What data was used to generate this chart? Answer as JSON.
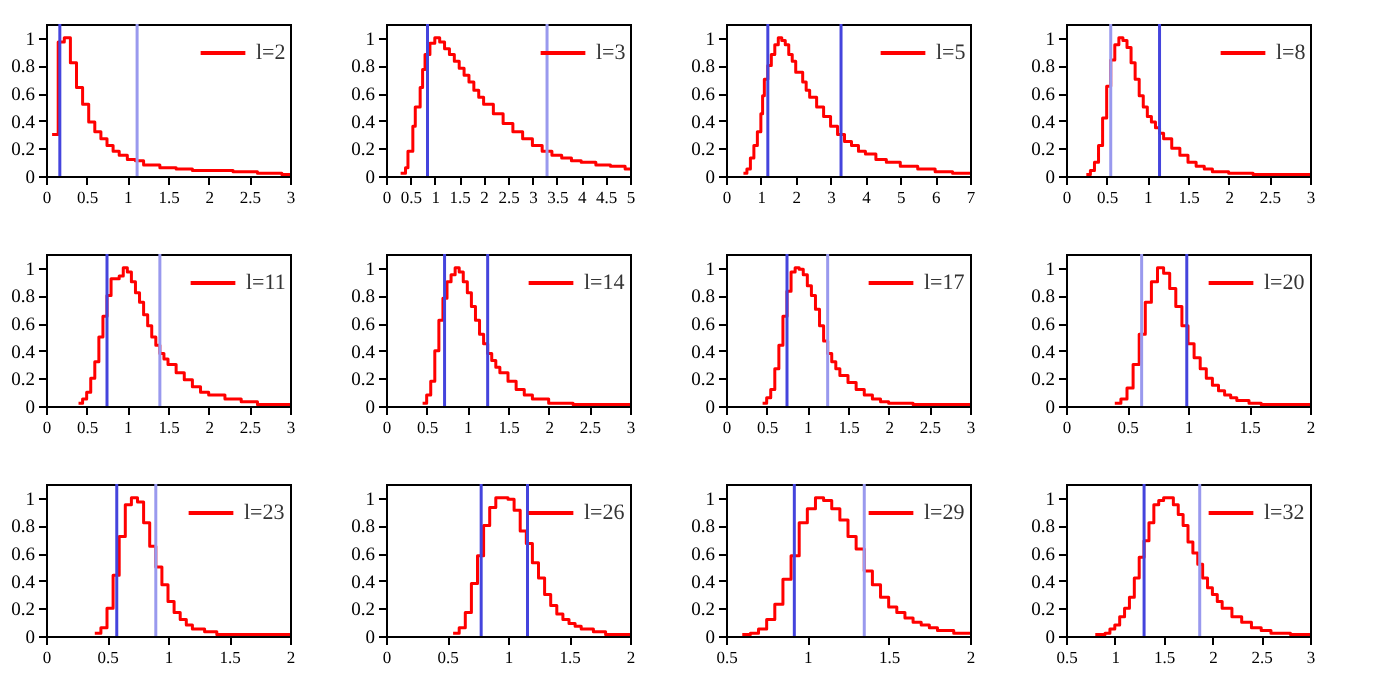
{
  "chart_data": [
    {
      "type": "step",
      "xlim": [
        0,
        3
      ],
      "xticks": [
        0,
        0.5,
        1,
        1.5,
        2,
        2.5,
        3
      ],
      "ylim": [
        0,
        1.1
      ],
      "yticks": [
        0,
        0.2,
        0.4,
        0.6,
        0.8,
        1
      ],
      "grid": false,
      "legend": "top right",
      "ref_lines": [
        {
          "axis": "x",
          "value": 0.17,
          "color": "#4444dd"
        },
        {
          "axis": "x",
          "value": 1.12,
          "color": "#9999ee"
        }
      ],
      "series": [
        {
          "name": "l=2",
          "color": "#ff0000",
          "x": [
            0.075,
            0.15,
            0.225,
            0.3,
            0.375,
            0.45,
            0.525,
            0.6,
            0.675,
            0.75,
            0.825,
            0.9,
            1.0,
            1.1,
            1.2,
            1.4,
            1.6,
            1.8,
            2.0,
            2.3,
            2.6,
            2.9,
            3.0
          ],
          "values": [
            0.3,
            0.97,
            1.0,
            0.82,
            0.64,
            0.52,
            0.39,
            0.32,
            0.27,
            0.22,
            0.18,
            0.15,
            0.12,
            0.11,
            0.08,
            0.06,
            0.05,
            0.04,
            0.04,
            0.03,
            0.02,
            0.01,
            0.01
          ]
        }
      ]
    },
    {
      "type": "step",
      "xlim": [
        0,
        5
      ],
      "xticks": [
        0,
        0.5,
        1,
        1.5,
        2,
        2.5,
        3,
        3.5,
        4,
        4.5,
        5
      ],
      "ylim": [
        0,
        1.1
      ],
      "yticks": [
        0,
        0.2,
        0.4,
        0.6,
        0.8,
        1
      ],
      "grid": false,
      "legend": "top right",
      "ref_lines": [
        {
          "axis": "x",
          "value": 0.85,
          "color": "#4444dd"
        },
        {
          "axis": "x",
          "value": 3.3,
          "color": "#9999ee"
        }
      ],
      "series": [
        {
          "name": "l=3",
          "color": "#ff0000",
          "x": [
            0.3,
            0.4,
            0.45,
            0.55,
            0.6,
            0.7,
            0.75,
            0.8,
            0.9,
            1.0,
            1.1,
            1.2,
            1.3,
            1.4,
            1.5,
            1.6,
            1.7,
            1.8,
            1.9,
            2.0,
            2.2,
            2.4,
            2.6,
            2.8,
            3.0,
            3.2,
            3.4,
            3.6,
            3.8,
            4.0,
            4.3,
            4.6,
            4.9,
            5.0
          ],
          "values": [
            0.02,
            0.06,
            0.18,
            0.36,
            0.5,
            0.64,
            0.77,
            0.88,
            0.96,
            1.0,
            0.97,
            0.92,
            0.88,
            0.83,
            0.78,
            0.73,
            0.68,
            0.62,
            0.57,
            0.52,
            0.45,
            0.38,
            0.32,
            0.27,
            0.22,
            0.18,
            0.15,
            0.13,
            0.11,
            0.1,
            0.08,
            0.07,
            0.05,
            0.05
          ]
        }
      ]
    },
    {
      "type": "step",
      "xlim": [
        0,
        7
      ],
      "xticks": [
        0,
        1,
        2,
        3,
        4,
        5,
        6,
        7
      ],
      "ylim": [
        0,
        1.1
      ],
      "yticks": [
        0,
        0.2,
        0.4,
        0.6,
        0.8,
        1
      ],
      "grid": false,
      "legend": "top right",
      "ref_lines": [
        {
          "axis": "x",
          "value": 1.2,
          "color": "#4444dd"
        },
        {
          "axis": "x",
          "value": 3.3,
          "color": "#4444dd"
        }
      ],
      "series": [
        {
          "name": "l=5",
          "color": "#ff0000",
          "x": [
            0.5,
            0.6,
            0.7,
            0.8,
            0.9,
            1.0,
            1.05,
            1.1,
            1.2,
            1.3,
            1.4,
            1.5,
            1.6,
            1.7,
            1.8,
            1.9,
            2.0,
            2.2,
            2.3,
            2.4,
            2.6,
            2.8,
            3.0,
            3.2,
            3.4,
            3.6,
            3.8,
            4.0,
            4.3,
            4.6,
            5.0,
            5.5,
            6.0,
            6.5,
            7.0
          ],
          "values": [
            0.02,
            0.05,
            0.13,
            0.22,
            0.32,
            0.45,
            0.58,
            0.7,
            0.8,
            0.88,
            0.95,
            1.0,
            0.98,
            0.95,
            0.88,
            0.83,
            0.75,
            0.68,
            0.62,
            0.57,
            0.5,
            0.43,
            0.36,
            0.3,
            0.25,
            0.22,
            0.18,
            0.16,
            0.12,
            0.1,
            0.07,
            0.05,
            0.03,
            0.02,
            0.02
          ]
        }
      ]
    },
    {
      "type": "step",
      "xlim": [
        0,
        3
      ],
      "xticks": [
        0,
        0.5,
        1,
        1.5,
        2,
        2.5,
        3
      ],
      "ylim": [
        0,
        1.1
      ],
      "yticks": [
        0,
        0.2,
        0.4,
        0.6,
        0.8,
        1
      ],
      "grid": false,
      "legend": "top right",
      "ref_lines": [
        {
          "axis": "x",
          "value": 0.55,
          "color": "#9999ee"
        },
        {
          "axis": "x",
          "value": 1.15,
          "color": "#4444dd"
        }
      ],
      "series": [
        {
          "name": "l=8",
          "color": "#ff0000",
          "x": [
            0.25,
            0.3,
            0.35,
            0.4,
            0.45,
            0.5,
            0.55,
            0.6,
            0.65,
            0.7,
            0.75,
            0.8,
            0.85,
            0.9,
            0.95,
            1.0,
            1.05,
            1.1,
            1.15,
            1.2,
            1.3,
            1.4,
            1.5,
            1.6,
            1.7,
            1.8,
            2.0,
            2.3,
            2.6,
            3.0
          ],
          "values": [
            0.01,
            0.04,
            0.1,
            0.22,
            0.42,
            0.65,
            0.84,
            0.95,
            1.0,
            0.98,
            0.93,
            0.82,
            0.7,
            0.58,
            0.5,
            0.43,
            0.39,
            0.35,
            0.31,
            0.27,
            0.2,
            0.15,
            0.1,
            0.07,
            0.05,
            0.03,
            0.02,
            0.01,
            0.01,
            0.01
          ]
        }
      ]
    },
    {
      "type": "step",
      "xlim": [
        0,
        3
      ],
      "xticks": [
        0,
        0.5,
        1,
        1.5,
        2,
        2.5,
        3
      ],
      "ylim": [
        0,
        1.1
      ],
      "yticks": [
        0,
        0.2,
        0.4,
        0.6,
        0.8,
        1
      ],
      "grid": false,
      "legend": "top right",
      "ref_lines": [
        {
          "axis": "x",
          "value": 0.75,
          "color": "#4444dd"
        },
        {
          "axis": "x",
          "value": 1.4,
          "color": "#9999ee"
        }
      ],
      "series": [
        {
          "name": "l=11",
          "color": "#ff0000",
          "x": [
            0.4,
            0.45,
            0.5,
            0.55,
            0.6,
            0.65,
            0.7,
            0.75,
            0.8,
            0.9,
            0.95,
            1.0,
            1.05,
            1.1,
            1.15,
            1.2,
            1.25,
            1.3,
            1.35,
            1.4,
            1.45,
            1.5,
            1.6,
            1.7,
            1.8,
            1.9,
            2.0,
            2.2,
            2.4,
            2.6,
            3.0
          ],
          "values": [
            0.02,
            0.05,
            0.1,
            0.2,
            0.32,
            0.5,
            0.65,
            0.8,
            0.92,
            0.94,
            1.0,
            0.97,
            0.9,
            0.82,
            0.75,
            0.66,
            0.58,
            0.5,
            0.44,
            0.38,
            0.34,
            0.3,
            0.24,
            0.19,
            0.14,
            0.1,
            0.08,
            0.05,
            0.03,
            0.01,
            0.01
          ]
        }
      ]
    },
    {
      "type": "step",
      "xlim": [
        0,
        3
      ],
      "xticks": [
        0,
        0.5,
        1,
        1.5,
        2,
        2.5,
        3
      ],
      "ylim": [
        0,
        1.1
      ],
      "yticks": [
        0,
        0.2,
        0.4,
        0.6,
        0.8,
        1
      ],
      "grid": false,
      "legend": "top right",
      "ref_lines": [
        {
          "axis": "x",
          "value": 0.72,
          "color": "#4444dd"
        },
        {
          "axis": "x",
          "value": 1.25,
          "color": "#4444dd"
        }
      ],
      "series": [
        {
          "name": "l=14",
          "color": "#ff0000",
          "x": [
            0.45,
            0.5,
            0.55,
            0.6,
            0.65,
            0.7,
            0.75,
            0.8,
            0.85,
            0.9,
            0.95,
            1.0,
            1.05,
            1.1,
            1.15,
            1.2,
            1.25,
            1.3,
            1.35,
            1.4,
            1.5,
            1.6,
            1.7,
            1.8,
            2.0,
            2.3,
            3.0
          ],
          "values": [
            0.02,
            0.08,
            0.18,
            0.4,
            0.62,
            0.78,
            0.9,
            0.95,
            1.0,
            0.97,
            0.9,
            0.82,
            0.72,
            0.62,
            0.52,
            0.45,
            0.38,
            0.33,
            0.28,
            0.24,
            0.18,
            0.12,
            0.08,
            0.05,
            0.02,
            0.01,
            0.01
          ]
        }
      ]
    },
    {
      "type": "step",
      "xlim": [
        0,
        3
      ],
      "xticks": [
        0,
        0.5,
        1,
        1.5,
        2,
        2.5,
        3
      ],
      "ylim": [
        0,
        1.1
      ],
      "yticks": [
        0,
        0.2,
        0.4,
        0.6,
        0.8,
        1
      ],
      "grid": false,
      "legend": "top right",
      "ref_lines": [
        {
          "axis": "x",
          "value": 0.75,
          "color": "#4444dd"
        },
        {
          "axis": "x",
          "value": 1.25,
          "color": "#9999ee"
        }
      ],
      "series": [
        {
          "name": "l=17",
          "color": "#ff0000",
          "x": [
            0.45,
            0.5,
            0.55,
            0.6,
            0.65,
            0.7,
            0.75,
            0.8,
            0.85,
            0.9,
            0.95,
            1.0,
            1.05,
            1.1,
            1.15,
            1.2,
            1.25,
            1.3,
            1.35,
            1.4,
            1.5,
            1.6,
            1.7,
            1.8,
            1.9,
            2.0,
            2.3,
            3.0
          ],
          "values": [
            0.02,
            0.06,
            0.12,
            0.27,
            0.44,
            0.65,
            0.83,
            0.97,
            1.0,
            0.99,
            0.95,
            0.87,
            0.8,
            0.7,
            0.58,
            0.47,
            0.38,
            0.32,
            0.27,
            0.22,
            0.17,
            0.12,
            0.08,
            0.05,
            0.03,
            0.02,
            0.01,
            0.01
          ]
        }
      ]
    },
    {
      "type": "step",
      "xlim": [
        0,
        2
      ],
      "xticks": [
        0,
        0.5,
        1,
        1.5,
        2
      ],
      "ylim": [
        0,
        1.1
      ],
      "yticks": [
        0,
        0.2,
        0.4,
        0.6,
        0.8,
        1
      ],
      "grid": false,
      "legend": "top right",
      "ref_lines": [
        {
          "axis": "x",
          "value": 0.62,
          "color": "#9999ee"
        },
        {
          "axis": "x",
          "value": 0.99,
          "color": "#4444dd"
        }
      ],
      "series": [
        {
          "name": "l=20",
          "color": "#ff0000",
          "x": [
            0.4,
            0.45,
            0.5,
            0.55,
            0.6,
            0.65,
            0.7,
            0.75,
            0.8,
            0.85,
            0.9,
            0.95,
            1.0,
            1.05,
            1.1,
            1.15,
            1.2,
            1.25,
            1.3,
            1.35,
            1.4,
            1.5,
            1.6,
            2.0
          ],
          "values": [
            0.02,
            0.05,
            0.13,
            0.3,
            0.52,
            0.75,
            0.9,
            1.0,
            0.96,
            0.85,
            0.72,
            0.58,
            0.45,
            0.35,
            0.27,
            0.2,
            0.15,
            0.11,
            0.08,
            0.06,
            0.04,
            0.02,
            0.01,
            0.01
          ]
        }
      ]
    },
    {
      "type": "step",
      "xlim": [
        0,
        2
      ],
      "xticks": [
        0,
        0.5,
        1,
        1.5,
        2
      ],
      "ylim": [
        0,
        1.1
      ],
      "yticks": [
        0,
        0.2,
        0.4,
        0.6,
        0.8,
        1
      ],
      "grid": false,
      "legend": "top right",
      "ref_lines": [
        {
          "axis": "x",
          "value": 0.58,
          "color": "#4444dd"
        },
        {
          "axis": "x",
          "value": 0.9,
          "color": "#9999ee"
        }
      ],
      "series": [
        {
          "name": "l=23",
          "color": "#ff0000",
          "x": [
            0.4,
            0.45,
            0.5,
            0.55,
            0.6,
            0.65,
            0.7,
            0.75,
            0.8,
            0.85,
            0.9,
            0.95,
            1.0,
            1.05,
            1.1,
            1.15,
            1.2,
            1.3,
            1.4,
            2.0
          ],
          "values": [
            0.02,
            0.06,
            0.2,
            0.44,
            0.72,
            0.95,
            1.0,
            0.97,
            0.82,
            0.65,
            0.5,
            0.37,
            0.25,
            0.17,
            0.12,
            0.08,
            0.05,
            0.03,
            0.01,
            0.01
          ]
        }
      ]
    },
    {
      "type": "step",
      "xlim": [
        0,
        2
      ],
      "xticks": [
        0,
        0.5,
        1,
        1.5,
        2
      ],
      "ylim": [
        0,
        1.1
      ],
      "yticks": [
        0,
        0.2,
        0.4,
        0.6,
        0.8,
        1
      ],
      "grid": false,
      "legend": "top right",
      "ref_lines": [
        {
          "axis": "x",
          "value": 0.78,
          "color": "#4444dd"
        },
        {
          "axis": "x",
          "value": 1.16,
          "color": "#4444dd"
        }
      ],
      "series": [
        {
          "name": "l=26",
          "color": "#ff0000",
          "x": [
            0.55,
            0.6,
            0.65,
            0.7,
            0.75,
            0.8,
            0.85,
            0.9,
            0.95,
            1.0,
            1.05,
            1.1,
            1.15,
            1.2,
            1.25,
            1.3,
            1.35,
            1.4,
            1.45,
            1.5,
            1.55,
            1.6,
            1.7,
            1.8,
            2.0
          ],
          "values": [
            0.02,
            0.06,
            0.17,
            0.38,
            0.58,
            0.8,
            0.93,
            1.0,
            1.0,
            0.99,
            0.91,
            0.76,
            0.67,
            0.53,
            0.42,
            0.3,
            0.22,
            0.16,
            0.12,
            0.09,
            0.07,
            0.05,
            0.03,
            0.01,
            0.01
          ]
        }
      ]
    },
    {
      "type": "step",
      "xlim": [
        0.5,
        2
      ],
      "xticks": [
        0.5,
        1,
        1.5,
        2
      ],
      "ylim": [
        0,
        1.1
      ],
      "yticks": [
        0,
        0.2,
        0.4,
        0.6,
        0.8,
        1
      ],
      "grid": false,
      "legend": "top right",
      "ref_lines": [
        {
          "axis": "x",
          "value": 0.92,
          "color": "#4444dd"
        },
        {
          "axis": "x",
          "value": 1.35,
          "color": "#9999ee"
        }
      ],
      "series": [
        {
          "name": "l=29",
          "color": "#ff0000",
          "x": [
            0.6,
            0.65,
            0.7,
            0.75,
            0.8,
            0.85,
            0.9,
            0.95,
            1.0,
            1.05,
            1.1,
            1.15,
            1.2,
            1.25,
            1.3,
            1.35,
            1.4,
            1.45,
            1.5,
            1.55,
            1.6,
            1.65,
            1.7,
            1.75,
            1.8,
            1.9,
            2.0
          ],
          "values": [
            0.01,
            0.02,
            0.05,
            0.12,
            0.23,
            0.41,
            0.58,
            0.82,
            0.92,
            1.0,
            0.98,
            0.92,
            0.84,
            0.72,
            0.63,
            0.47,
            0.37,
            0.28,
            0.21,
            0.17,
            0.13,
            0.1,
            0.08,
            0.06,
            0.04,
            0.02,
            0.02
          ]
        }
      ]
    },
    {
      "type": "step",
      "xlim": [
        0.5,
        3
      ],
      "xticks": [
        0.5,
        1,
        1.5,
        2,
        2.5,
        3
      ],
      "ylim": [
        0,
        1.1
      ],
      "yticks": [
        0,
        0.2,
        0.4,
        0.6,
        0.8,
        1
      ],
      "grid": false,
      "legend": "top right",
      "ref_lines": [
        {
          "axis": "x",
          "value": 1.3,
          "color": "#4444dd"
        },
        {
          "axis": "x",
          "value": 1.87,
          "color": "#9999ee"
        }
      ],
      "series": [
        {
          "name": "l=32",
          "color": "#ff0000",
          "x": [
            0.8,
            0.9,
            0.95,
            1.0,
            1.05,
            1.1,
            1.15,
            1.2,
            1.25,
            1.3,
            1.35,
            1.4,
            1.45,
            1.5,
            1.55,
            1.6,
            1.65,
            1.7,
            1.75,
            1.8,
            1.85,
            1.9,
            1.95,
            2.0,
            2.05,
            2.1,
            2.2,
            2.3,
            2.4,
            2.5,
            2.6,
            2.8,
            3.0
          ],
          "values": [
            0.01,
            0.02,
            0.05,
            0.08,
            0.14,
            0.2,
            0.28,
            0.42,
            0.57,
            0.69,
            0.82,
            0.95,
            0.98,
            1.0,
            1.0,
            0.95,
            0.88,
            0.8,
            0.68,
            0.6,
            0.52,
            0.42,
            0.35,
            0.3,
            0.25,
            0.2,
            0.14,
            0.1,
            0.06,
            0.04,
            0.02,
            0.01,
            0.01
          ]
        }
      ]
    }
  ]
}
